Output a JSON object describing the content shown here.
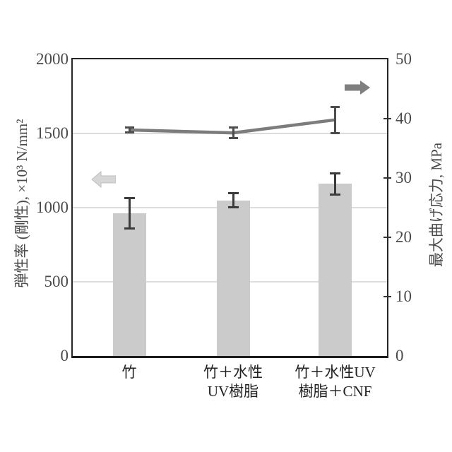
{
  "chart_data": {
    "type": "bar+line",
    "title": "",
    "legend": "none",
    "grid": "horizontal light gray lines at left-axis 500/1000/1500",
    "categories": [
      [
        "竹"
      ],
      [
        "竹＋水性",
        "UV樹脂"
      ],
      [
        "竹＋水性UV",
        "樹脂＋CNF"
      ]
    ],
    "left_axis": {
      "title": "弾性率 (剛性), ×10³ N/mm²",
      "ticks": [
        0,
        500,
        1000,
        1500,
        2000
      ],
      "lim": [
        0,
        2000
      ],
      "gridlines": [
        500,
        1000,
        1500
      ]
    },
    "right_axis": {
      "title": "最大曲げ応力, MPa",
      "ticks": [
        0,
        10,
        20,
        30,
        40,
        50
      ],
      "lim": [
        0,
        50
      ],
      "tick_marks": [
        10,
        20,
        30,
        40
      ]
    },
    "series": [
      {
        "name": "弾性率（剛性）",
        "type": "bar",
        "axis": "left",
        "values": [
          960,
          1050,
          1160
        ],
        "errors": [
          110,
          55,
          80
        ],
        "color": "#cbcbcb",
        "error_color": "#3b3b3b"
      },
      {
        "name": "最大曲げ応力",
        "type": "line",
        "axis": "right",
        "values": [
          38.1,
          37.6,
          39.8
        ],
        "errors": [
          0.6,
          1.1,
          2.4
        ],
        "color": "#7c7c7c",
        "error_color": "#4d4d4d"
      }
    ],
    "annotations": {
      "left_arrow": {
        "direction": "left",
        "color": "#d6d6d6"
      },
      "right_arrow": {
        "direction": "right",
        "color": "#7f7f7f"
      }
    }
  }
}
